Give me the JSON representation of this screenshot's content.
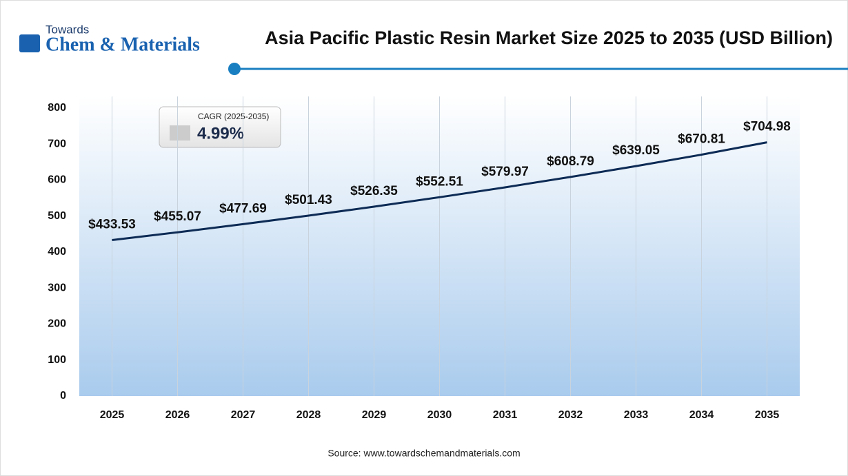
{
  "logo": {
    "top": "Towards",
    "main": "Chem & Materials"
  },
  "chart_data": {
    "type": "line",
    "title": "Asia Pacific Plastic Resin Market Size 2025 to 2035 (USD Billion)",
    "categories": [
      "2025",
      "2026",
      "2027",
      "2028",
      "2029",
      "2030",
      "2031",
      "2032",
      "2033",
      "2034",
      "2035"
    ],
    "values": [
      433.53,
      455.07,
      477.69,
      501.43,
      526.35,
      552.51,
      579.97,
      608.79,
      639.05,
      670.81,
      704.98
    ],
    "value_labels": [
      "$433.53",
      "$455.07",
      "$477.69",
      "$501.43",
      "$526.35",
      "$552.51",
      "$579.97",
      "$608.79",
      "$639.05",
      "$670.81",
      "$704.98"
    ],
    "color": "#0d2b55",
    "ylim": [
      0,
      800
    ],
    "yticks": [
      0,
      100,
      200,
      300,
      400,
      500,
      600,
      700,
      800
    ],
    "annotation": {
      "label": "CAGR (2025-2035)",
      "value": "4.99%"
    },
    "source": "Source: www.towardschemandmaterials.com"
  }
}
